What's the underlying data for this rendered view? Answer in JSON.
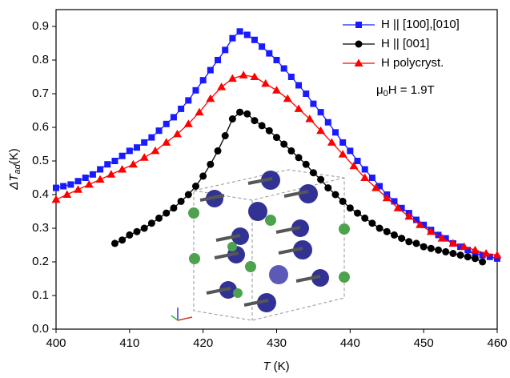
{
  "chart_data": {
    "type": "line",
    "xlabel": {
      "main": "T",
      "unit": "(K)"
    },
    "ylabel": {
      "main": "ΔT",
      "sub": "ad",
      "unit": "(K)"
    },
    "annotation": {
      "pre": "μ",
      "sub": "0",
      "post": "H = 1.9T"
    },
    "xlim": [
      400,
      460
    ],
    "xticks": [
      400,
      410,
      420,
      430,
      440,
      450,
      460
    ],
    "ylim": [
      0,
      0.95
    ],
    "yticks": [
      {
        "value": 0,
        "label": "0.0"
      },
      0.1,
      0.2,
      0.3,
      0.4,
      0.5,
      0.6,
      0.7,
      0.8,
      0.9
    ],
    "legend": "upper right",
    "series": [
      {
        "name": "H || [100],[010]",
        "color": "#1a1aff",
        "marker": "square",
        "x": [
          400,
          401,
          402,
          403,
          404,
          405,
          406,
          407,
          408,
          409,
          410,
          411,
          412,
          413,
          414,
          415,
          416,
          417,
          418,
          419,
          420,
          421,
          422,
          423,
          424,
          425,
          426,
          427,
          428,
          429,
          430,
          431,
          432,
          433,
          434,
          435,
          436,
          437,
          438,
          439,
          440,
          441,
          442,
          443,
          444,
          445,
          446,
          447,
          448,
          449,
          450,
          451,
          452,
          453,
          454,
          455,
          456,
          457,
          458,
          459,
          460
        ],
        "values": [
          0.42,
          0.425,
          0.43,
          0.44,
          0.45,
          0.46,
          0.475,
          0.49,
          0.5,
          0.515,
          0.53,
          0.54,
          0.555,
          0.57,
          0.59,
          0.61,
          0.63,
          0.655,
          0.68,
          0.71,
          0.74,
          0.77,
          0.8,
          0.83,
          0.865,
          0.885,
          0.875,
          0.86,
          0.84,
          0.82,
          0.8,
          0.775,
          0.75,
          0.725,
          0.7,
          0.67,
          0.645,
          0.615,
          0.585,
          0.555,
          0.53,
          0.5,
          0.475,
          0.45,
          0.425,
          0.4,
          0.38,
          0.36,
          0.345,
          0.325,
          0.31,
          0.295,
          0.28,
          0.27,
          0.255,
          0.245,
          0.235,
          0.225,
          0.22,
          0.215,
          0.21
        ]
      },
      {
        "name": "H || [001]",
        "color": "#000000",
        "marker": "circle",
        "x": [
          408,
          409,
          410,
          411,
          412,
          413,
          414,
          415,
          416,
          417,
          418,
          419,
          420,
          421,
          422,
          423,
          424,
          425,
          426,
          427,
          428,
          429,
          430,
          431,
          432,
          433,
          434,
          435,
          436,
          437,
          438,
          439,
          440,
          441,
          442,
          443,
          444,
          445,
          446,
          447,
          448,
          449,
          450,
          451,
          452,
          453,
          454,
          455,
          456,
          457,
          458
        ],
        "values": [
          0.255,
          0.265,
          0.28,
          0.29,
          0.3,
          0.315,
          0.33,
          0.345,
          0.36,
          0.38,
          0.4,
          0.425,
          0.455,
          0.49,
          0.53,
          0.575,
          0.625,
          0.645,
          0.64,
          0.62,
          0.605,
          0.59,
          0.57,
          0.55,
          0.53,
          0.51,
          0.49,
          0.465,
          0.445,
          0.42,
          0.4,
          0.38,
          0.36,
          0.345,
          0.33,
          0.315,
          0.3,
          0.29,
          0.28,
          0.27,
          0.26,
          0.255,
          0.245,
          0.24,
          0.235,
          0.23,
          0.225,
          0.22,
          0.215,
          0.21,
          0.2
        ]
      },
      {
        "name": "H polycryst.",
        "color": "#ff0000",
        "marker": "triangle",
        "x": [
          400,
          401.5,
          403,
          404.5,
          406,
          407.5,
          409,
          410.5,
          412,
          413.5,
          415,
          416.5,
          418,
          419.5,
          421,
          422.5,
          424,
          425.5,
          427,
          428.5,
          430,
          431.5,
          433,
          434.5,
          436,
          437.5,
          439,
          440.5,
          442,
          443.5,
          445,
          446.5,
          448,
          449.5,
          451,
          452.5,
          454,
          455.5,
          457,
          458.5,
          460
        ],
        "values": [
          0.385,
          0.4,
          0.415,
          0.43,
          0.445,
          0.46,
          0.475,
          0.49,
          0.51,
          0.53,
          0.555,
          0.58,
          0.61,
          0.645,
          0.685,
          0.72,
          0.745,
          0.755,
          0.75,
          0.73,
          0.71,
          0.685,
          0.655,
          0.625,
          0.59,
          0.555,
          0.52,
          0.485,
          0.45,
          0.42,
          0.39,
          0.36,
          0.335,
          0.31,
          0.29,
          0.27,
          0.255,
          0.245,
          0.235,
          0.225,
          0.22
        ]
      }
    ]
  }
}
